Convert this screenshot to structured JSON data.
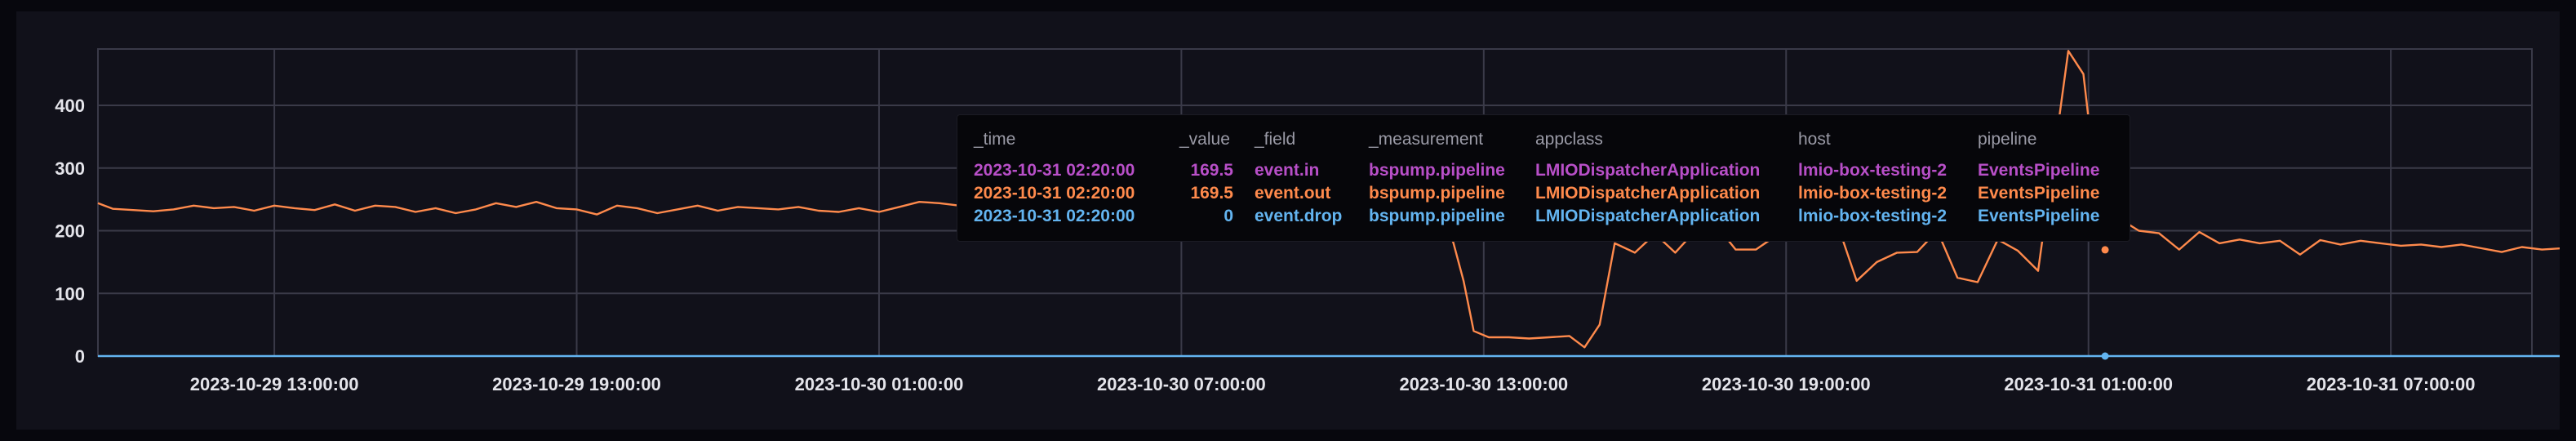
{
  "chart_data": {
    "type": "line",
    "ylim": [
      0,
      490
    ],
    "y_ticks": [
      0,
      100,
      200,
      300,
      400
    ],
    "x_tick_labels": [
      "2023-10-29 13:00:00",
      "2023-10-29 19:00:00",
      "2023-10-30 01:00:00",
      "2023-10-30 07:00:00",
      "2023-10-30 13:00:00",
      "2023-10-30 19:00:00",
      "2023-10-31 01:00:00",
      "2023-10-31 07:00:00"
    ],
    "x_range_hours": [
      -3.5,
      44.8
    ],
    "grid": true,
    "legend": "none",
    "hover": {
      "hours": 36.33,
      "value": 169.5
    },
    "series": [
      {
        "color": "#ff8a4c",
        "points": [
          [
            -3.5,
            244
          ],
          [
            -3.2,
            235
          ],
          [
            -2.8,
            233
          ],
          [
            -2.4,
            231
          ],
          [
            -2.0,
            234
          ],
          [
            -1.6,
            240
          ],
          [
            -1.2,
            236
          ],
          [
            -0.8,
            238
          ],
          [
            -0.4,
            232
          ],
          [
            0.0,
            240
          ],
          [
            0.4,
            236
          ],
          [
            0.8,
            233
          ],
          [
            1.2,
            242
          ],
          [
            1.6,
            232
          ],
          [
            2.0,
            240
          ],
          [
            2.4,
            238
          ],
          [
            2.8,
            230
          ],
          [
            3.2,
            236
          ],
          [
            3.6,
            228
          ],
          [
            4.0,
            234
          ],
          [
            4.4,
            244
          ],
          [
            4.8,
            238
          ],
          [
            5.2,
            246
          ],
          [
            5.6,
            236
          ],
          [
            6.0,
            234
          ],
          [
            6.4,
            226
          ],
          [
            6.8,
            240
          ],
          [
            7.2,
            236
          ],
          [
            7.6,
            228
          ],
          [
            8.0,
            234
          ],
          [
            8.4,
            240
          ],
          [
            8.8,
            232
          ],
          [
            9.2,
            238
          ],
          [
            9.6,
            236
          ],
          [
            10.0,
            234
          ],
          [
            10.4,
            238
          ],
          [
            10.8,
            232
          ],
          [
            11.2,
            230
          ],
          [
            11.6,
            236
          ],
          [
            12.0,
            230
          ],
          [
            12.4,
            238
          ],
          [
            12.8,
            246
          ],
          [
            13.2,
            244
          ],
          [
            13.6,
            240
          ],
          [
            14.0,
            236
          ],
          [
            14.4,
            232
          ],
          [
            14.8,
            238
          ],
          [
            15.2,
            230
          ],
          [
            15.6,
            222
          ],
          [
            16.0,
            238
          ],
          [
            16.4,
            232
          ],
          [
            16.8,
            246
          ],
          [
            17.2,
            228
          ],
          [
            17.6,
            236
          ],
          [
            18.0,
            230
          ],
          [
            18.4,
            238
          ],
          [
            18.8,
            232
          ],
          [
            19.2,
            236
          ],
          [
            19.6,
            230
          ],
          [
            20.0,
            238
          ],
          [
            20.4,
            232
          ],
          [
            20.8,
            236
          ],
          [
            21.2,
            232
          ],
          [
            21.6,
            236
          ],
          [
            22.0,
            230
          ],
          [
            22.4,
            236
          ],
          [
            22.8,
            228
          ],
          [
            23.2,
            226
          ],
          [
            23.4,
            180
          ],
          [
            23.6,
            120
          ],
          [
            23.8,
            40
          ],
          [
            24.1,
            30
          ],
          [
            24.5,
            30
          ],
          [
            24.9,
            28
          ],
          [
            25.3,
            30
          ],
          [
            25.7,
            32
          ],
          [
            26.0,
            14
          ],
          [
            26.3,
            50
          ],
          [
            26.6,
            180
          ],
          [
            27.0,
            165
          ],
          [
            27.4,
            195
          ],
          [
            27.8,
            165
          ],
          [
            28.2,
            200
          ],
          [
            28.6,
            210
          ],
          [
            29.0,
            170
          ],
          [
            29.4,
            170
          ],
          [
            29.8,
            192
          ],
          [
            30.2,
            202
          ],
          [
            30.6,
            200
          ],
          [
            31.0,
            215
          ],
          [
            31.4,
            120
          ],
          [
            31.8,
            150
          ],
          [
            32.2,
            165
          ],
          [
            32.6,
            166
          ],
          [
            33.0,
            200
          ],
          [
            33.4,
            125
          ],
          [
            33.8,
            118
          ],
          [
            34.2,
            186
          ],
          [
            34.6,
            168
          ],
          [
            35.0,
            136
          ],
          [
            35.3,
            310
          ],
          [
            35.6,
            487
          ],
          [
            35.9,
            450
          ],
          [
            36.2,
            240
          ],
          [
            36.6,
            220
          ],
          [
            37.0,
            200
          ],
          [
            37.4,
            196
          ],
          [
            37.8,
            170
          ],
          [
            38.2,
            198
          ],
          [
            38.6,
            180
          ],
          [
            39.0,
            186
          ],
          [
            39.4,
            180
          ],
          [
            39.8,
            184
          ],
          [
            40.2,
            162
          ],
          [
            40.6,
            185
          ],
          [
            41.0,
            178
          ],
          [
            41.4,
            184
          ],
          [
            41.8,
            180
          ],
          [
            42.2,
            176
          ],
          [
            42.6,
            178
          ],
          [
            43.0,
            174
          ],
          [
            43.4,
            178
          ],
          [
            43.8,
            172
          ],
          [
            44.2,
            166
          ],
          [
            44.6,
            174
          ],
          [
            45.0,
            170
          ],
          [
            45.4,
            172
          ],
          [
            45.8,
            166
          ],
          [
            46.2,
            170
          ],
          [
            46.6,
            165
          ],
          [
            47.0,
            168
          ],
          [
            47.4,
            162
          ],
          [
            47.8,
            170
          ],
          [
            48.2,
            160
          ],
          [
            48.6,
            166
          ],
          [
            49.0,
            158
          ],
          [
            49.4,
            162
          ],
          [
            49.8,
            155
          ],
          [
            50.2,
            164
          ],
          [
            50.6,
            160
          ],
          [
            51.0,
            158
          ],
          [
            51.4,
            166
          ],
          [
            51.8,
            158
          ],
          [
            52.2,
            162
          ],
          [
            52.6,
            156
          ],
          [
            53.0,
            154
          ],
          [
            53.4,
            164
          ],
          [
            53.8,
            160
          ],
          [
            54.2,
            156
          ],
          [
            54.6,
            162
          ]
        ]
      },
      {
        "color": "#63b4f0",
        "points": [
          [
            -3.5,
            0
          ],
          [
            54.6,
            0
          ]
        ]
      }
    ]
  },
  "tooltip": {
    "headers": [
      "_time",
      "_value",
      "_field",
      "_measurement",
      "appclass",
      "host",
      "pipeline"
    ],
    "rows": [
      {
        "color": "#b84fc8",
        "cells": [
          "2023-10-31 02:20:00",
          "169.5",
          "event.in",
          "bspump.pipeline",
          "LMIODispatcherApplication",
          "lmio-box-testing-2",
          "EventsPipeline"
        ]
      },
      {
        "color": "#ff8a4c",
        "cells": [
          "2023-10-31 02:20:00",
          "169.5",
          "event.out",
          "bspump.pipeline",
          "LMIODispatcherApplication",
          "lmio-box-testing-2",
          "EventsPipeline"
        ]
      },
      {
        "color": "#63b4f0",
        "cells": [
          "2023-10-31 02:20:00",
          "0",
          "event.drop",
          "bspump.pipeline",
          "LMIODispatcherApplication",
          "lmio-box-testing-2",
          "EventsPipeline"
        ]
      }
    ]
  }
}
